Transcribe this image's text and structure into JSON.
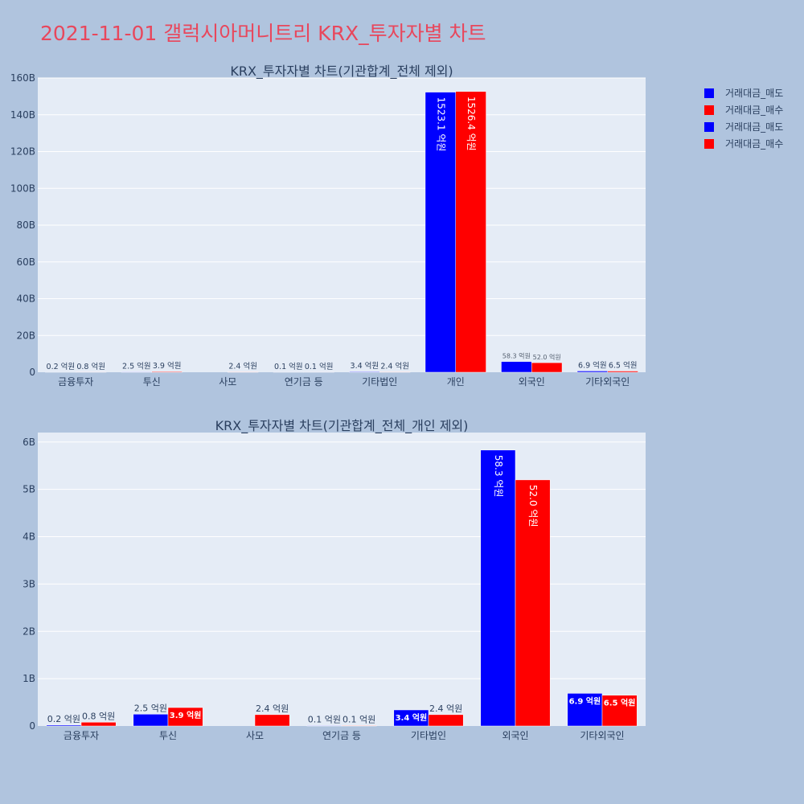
{
  "title": "2021-11-01 갤럭시아머니트리 KRX_투자자별 차트",
  "colors": {
    "sell": "#0000ff",
    "buy": "#ff0000",
    "title": "#e8475c",
    "plot_bg": "#e5ecf6",
    "page_bg": "#b0c4de"
  },
  "legend": [
    "거래대금_매도",
    "거래대금_매수",
    "거래대금_매도",
    "거래대금_매수"
  ],
  "chart_data": [
    {
      "type": "bar",
      "title": "KRX_투자자별 차트(기관합계_전체 제외)",
      "categories": [
        "금융투자",
        "투신",
        "사모",
        "연기금 등",
        "기타법인",
        "개인",
        "외국인",
        "기타외국인"
      ],
      "ylim": [
        0,
        160
      ],
      "yticks": [
        0,
        20,
        40,
        60,
        80,
        100,
        120,
        140,
        160
      ],
      "ytick_labels": [
        "0",
        "20B",
        "40B",
        "60B",
        "80B",
        "100B",
        "120B",
        "140B",
        "160B"
      ],
      "series": [
        {
          "name": "거래대금_매도",
          "values": [
            0.02,
            0.25,
            0,
            0.01,
            0.34,
            152.31,
            5.83,
            0.69
          ],
          "labels": [
            "0.2 억원",
            "2.5 억원",
            "",
            "0.1 억원",
            "3.4 억원",
            "1523.1 억원",
            "58.3 억원",
            "6.9 억원"
          ]
        },
        {
          "name": "거래대금_매수",
          "values": [
            0.08,
            0.39,
            0.24,
            0.01,
            0.24,
            152.64,
            5.2,
            0.65
          ],
          "labels": [
            "0.8 억원",
            "3.9 억원",
            "2.4 억원",
            "0.1 억원",
            "2.4 억원",
            "1526.4 억원",
            "52.0 억원",
            "6.5 억원"
          ]
        }
      ],
      "grid": true
    },
    {
      "type": "bar",
      "title": "KRX_투자자별 차트(기관합계_전체_개인 제외)",
      "categories": [
        "금융투자",
        "투신",
        "사모",
        "연기금 등",
        "기타법인",
        "외국인",
        "기타외국인"
      ],
      "ylim": [
        0,
        6.2
      ],
      "yticks": [
        0,
        1,
        2,
        3,
        4,
        5,
        6
      ],
      "ytick_labels": [
        "0",
        "1B",
        "2B",
        "3B",
        "4B",
        "5B",
        "6B"
      ],
      "series": [
        {
          "name": "거래대금_매도",
          "values": [
            0.02,
            0.25,
            0,
            0.01,
            0.34,
            5.83,
            0.69
          ],
          "labels": [
            "0.2 억원",
            "2.5 억원",
            "",
            "0.1 억원",
            "3.4 억원",
            "58.3 억원",
            "6.9 억원"
          ]
        },
        {
          "name": "거래대금_매수",
          "values": [
            0.08,
            0.39,
            0.24,
            0.01,
            0.24,
            5.2,
            0.65
          ],
          "labels": [
            "0.8 억원",
            "3.9 억원",
            "2.4 억원",
            "0.1 억원",
            "2.4 억원",
            "52.0 억원",
            "6.5 억원"
          ]
        }
      ],
      "grid": true
    }
  ]
}
